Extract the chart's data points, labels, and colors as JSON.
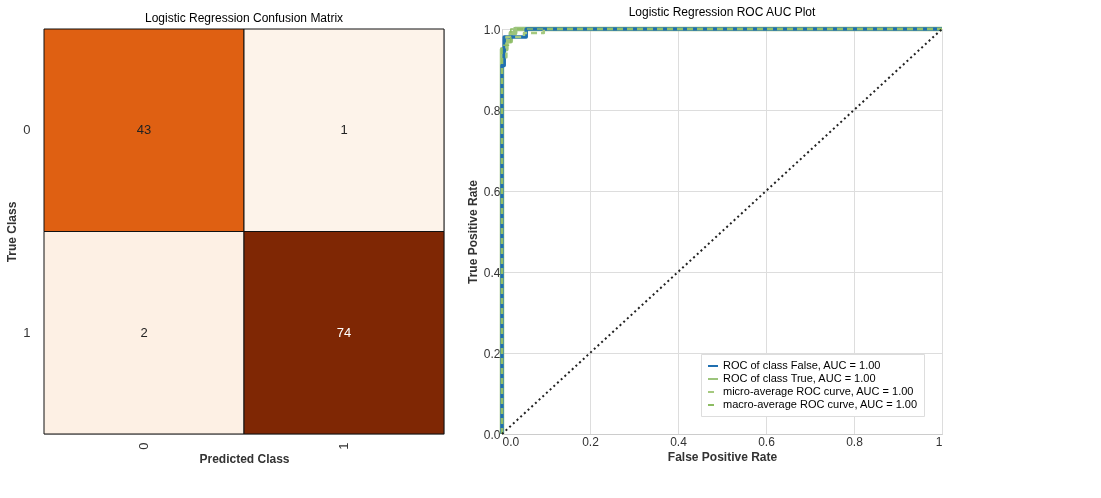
{
  "chart_data": [
    {
      "type": "heatmap",
      "title": "Logistic Regression Confusion Matrix",
      "xlabel": "Predicted Class",
      "ylabel": "True Class",
      "categories": [
        "0",
        "1"
      ],
      "y_categories": [
        "0",
        "1"
      ],
      "cells": [
        [
          43,
          1
        ],
        [
          2,
          74
        ]
      ],
      "data_labels": true
    },
    {
      "type": "line",
      "title": "Logistic Regression ROC AUC Plot",
      "xlabel": "False Positive Rate",
      "ylabel": "True Positive Rate",
      "xlim": [
        0,
        1
      ],
      "ylim": [
        0,
        1
      ],
      "xticks": [
        {
          "value": 0,
          "label": "0.0"
        },
        0.2,
        0.4,
        0.6,
        0.8,
        1
      ],
      "yticks": [
        {
          "value": 0,
          "label": "0.0"
        },
        0.2,
        0.4,
        0.6,
        0.8,
        {
          "value": 1,
          "label": "1.0"
        }
      ],
      "grid": true,
      "legend": "bottom right",
      "marker": "none",
      "series": [
        {
          "name": "ROC of class False, AUC = 1.00",
          "color": "#1f6fb0",
          "line_style": "solid",
          "x": [
            0,
            0,
            0.005,
            0.005,
            0.055,
            0.055,
            1
          ],
          "values": [
            0,
            0.91,
            0.91,
            0.98,
            0.98,
            1,
            1
          ]
        },
        {
          "name": "ROC of class True, AUC = 1.00",
          "color": "#9cc47c",
          "line_style": "solid",
          "x": [
            0,
            0,
            0.01,
            0.01,
            0.02,
            0.02,
            0.03,
            0.03,
            1
          ],
          "values": [
            0,
            0.95,
            0.95,
            0.97,
            0.97,
            0.99,
            0.99,
            1,
            1
          ]
        },
        {
          "name": "micro-average ROC curve, AUC = 1.00",
          "color": "#a5c97f",
          "line_style": "dashed",
          "x": [
            0,
            0,
            0.01,
            0.01,
            0.05,
            0.05,
            0.095,
            0.095,
            1
          ],
          "values": [
            0,
            0.93,
            0.93,
            0.98,
            0.98,
            0.99,
            0.99,
            1,
            1
          ]
        },
        {
          "name": "macro-average ROC curve, AUC = 1.00",
          "color": "#8cbc62",
          "line_style": "dashed",
          "x": [
            0,
            0,
            0.02,
            0.02,
            1
          ],
          "values": [
            0,
            0.96,
            0.96,
            1,
            1
          ]
        },
        {
          "color": "#222222",
          "line_style": "dotted",
          "x": [
            0,
            1
          ],
          "values": [
            0,
            1
          ]
        }
      ]
    }
  ]
}
